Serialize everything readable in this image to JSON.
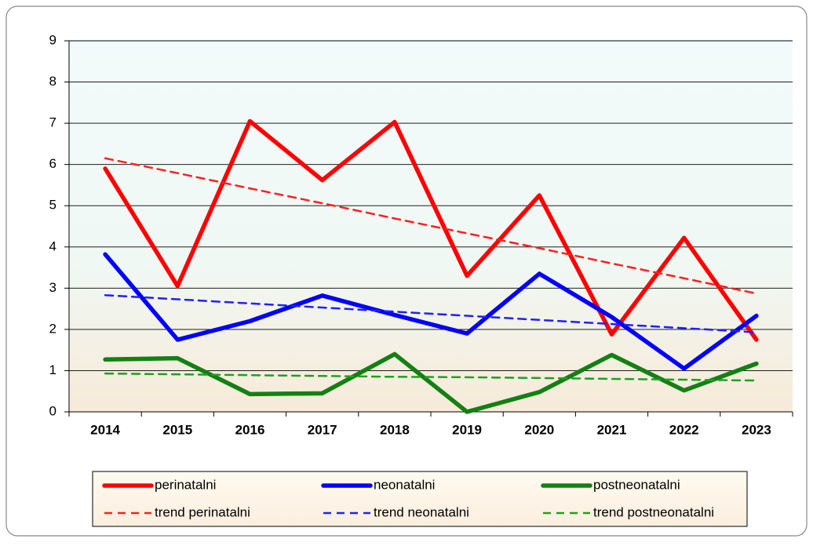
{
  "chart_data": {
    "type": "line",
    "categories": [
      "2014",
      "2015",
      "2016",
      "2017",
      "2018",
      "2019",
      "2020",
      "2021",
      "2022",
      "2023"
    ],
    "series": [
      {
        "name": "perinatalni",
        "color": "#ff0000",
        "style": "solid",
        "values": [
          5.9,
          3.05,
          7.05,
          5.62,
          7.03,
          3.3,
          5.25,
          1.88,
          4.22,
          1.75
        ]
      },
      {
        "name": "neonatalni",
        "color": "#0000ff",
        "style": "solid",
        "values": [
          3.82,
          1.75,
          2.2,
          2.82,
          2.35,
          1.9,
          3.35,
          2.3,
          1.05,
          2.33
        ]
      },
      {
        "name": "postneonatalni",
        "color": "#138013",
        "style": "solid",
        "values": [
          1.27,
          1.3,
          0.43,
          0.45,
          1.4,
          0,
          0.48,
          1.38,
          0.52,
          1.17
        ]
      },
      {
        "name": "trend perinatalni",
        "color": "#ff2020",
        "style": "dashed",
        "values": [
          6.15,
          5.79,
          5.42,
          5.06,
          4.69,
          4.33,
          3.97,
          3.6,
          3.24,
          2.87
        ]
      },
      {
        "name": "trend neonatalni",
        "color": "#2020ff",
        "style": "dashed",
        "values": [
          2.83,
          2.73,
          2.63,
          2.53,
          2.43,
          2.33,
          2.23,
          2.13,
          2.03,
          1.93
        ]
      },
      {
        "name": "trend postneonatalni",
        "color": "#20a020",
        "style": "dashed",
        "values": [
          0.93,
          0.91,
          0.89,
          0.87,
          0.85,
          0.84,
          0.82,
          0.8,
          0.78,
          0.76
        ]
      }
    ],
    "ylim": [
      0,
      9
    ],
    "yticks": [
      0,
      1,
      2,
      3,
      4,
      5,
      6,
      7,
      8,
      9
    ],
    "grid": true,
    "legend": "bottom"
  }
}
